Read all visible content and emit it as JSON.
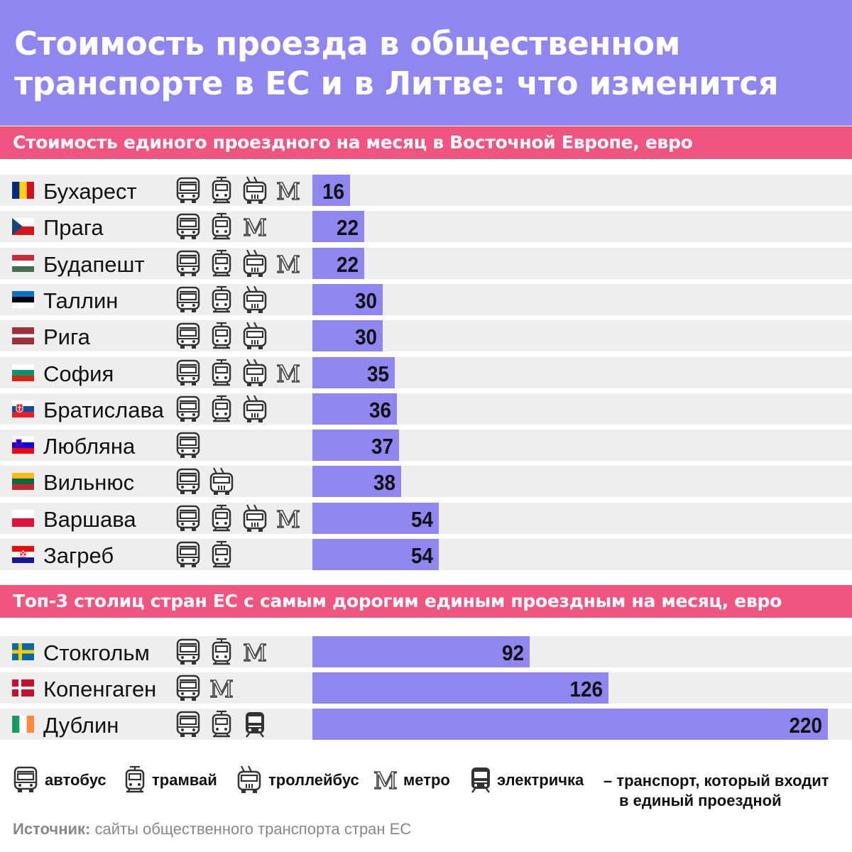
{
  "title": "Стоимость проезда в общественном транспорте в ЕС и в Литве: что изменится",
  "section1_title": "Стоимость единого проездного на месяц в Восточной Европе, евро",
  "section2_title": "Топ-3 столиц стран ЕС с самым дорогим единым проездным на месяц, евро",
  "colors": {
    "header": "#8f86f2",
    "section_bar": "#f0557f",
    "bar": "#8f86f2",
    "row_background": "#eeeeee"
  },
  "chart_data": [
    {
      "type": "bar",
      "orientation": "horizontal",
      "title": "Стоимость единого проездного на месяц в Восточной Европе, евро",
      "categories": [
        "Бухарест",
        "Прага",
        "Будапешт",
        "Таллин",
        "Рига",
        "София",
        "Братислава",
        "Любляна",
        "Вильнюс",
        "Варшава",
        "Загреб"
      ],
      "values": [
        16,
        22,
        22,
        30,
        30,
        35,
        36,
        37,
        38,
        54,
        54
      ],
      "flags": [
        "romania",
        "czechia",
        "hungary",
        "estonia",
        "latvia",
        "bulgaria",
        "slovakia",
        "slovenia",
        "lithuania",
        "poland",
        "croatia"
      ],
      "transport": [
        [
          "bus",
          "tram",
          "trolleybus",
          "metro"
        ],
        [
          "bus",
          "tram",
          "metro"
        ],
        [
          "bus",
          "tram",
          "trolleybus",
          "metro"
        ],
        [
          "bus",
          "tram",
          "trolleybus"
        ],
        [
          "bus",
          "tram",
          "trolleybus"
        ],
        [
          "bus",
          "tram",
          "trolleybus",
          "metro"
        ],
        [
          "bus",
          "tram",
          "trolleybus"
        ],
        [
          "bus"
        ],
        [
          "bus",
          "trolleybus"
        ],
        [
          "bus",
          "tram",
          "trolleybus",
          "metro"
        ],
        [
          "bus",
          "tram"
        ]
      ]
    },
    {
      "type": "bar",
      "orientation": "horizontal",
      "title": "Топ-3 столиц стран ЕС с самым дорогим единым проездным на месяц, евро",
      "categories": [
        "Стокгольм",
        "Копенгаген",
        "Дублин"
      ],
      "values": [
        92,
        126,
        220
      ],
      "flags": [
        "sweden",
        "denmark",
        "ireland"
      ],
      "transport": [
        [
          "bus",
          "tram",
          "metro"
        ],
        [
          "bus",
          "metro"
        ],
        [
          "bus",
          "tram",
          "train"
        ]
      ]
    }
  ],
  "legend": [
    {
      "icon": "bus",
      "label": "автобус"
    },
    {
      "icon": "tram",
      "label": "трамвай"
    },
    {
      "icon": "trolleybus",
      "label": "троллейбус"
    },
    {
      "icon": "metro",
      "label": "метро"
    },
    {
      "icon": "train",
      "label": "электричка"
    }
  ],
  "legend_note_line1": "– транспорт, который входит",
  "legend_note_line2": "в единый проездной",
  "source_label": "Источник:",
  "source_text": " сайты общественного транспорта стран ЕС"
}
